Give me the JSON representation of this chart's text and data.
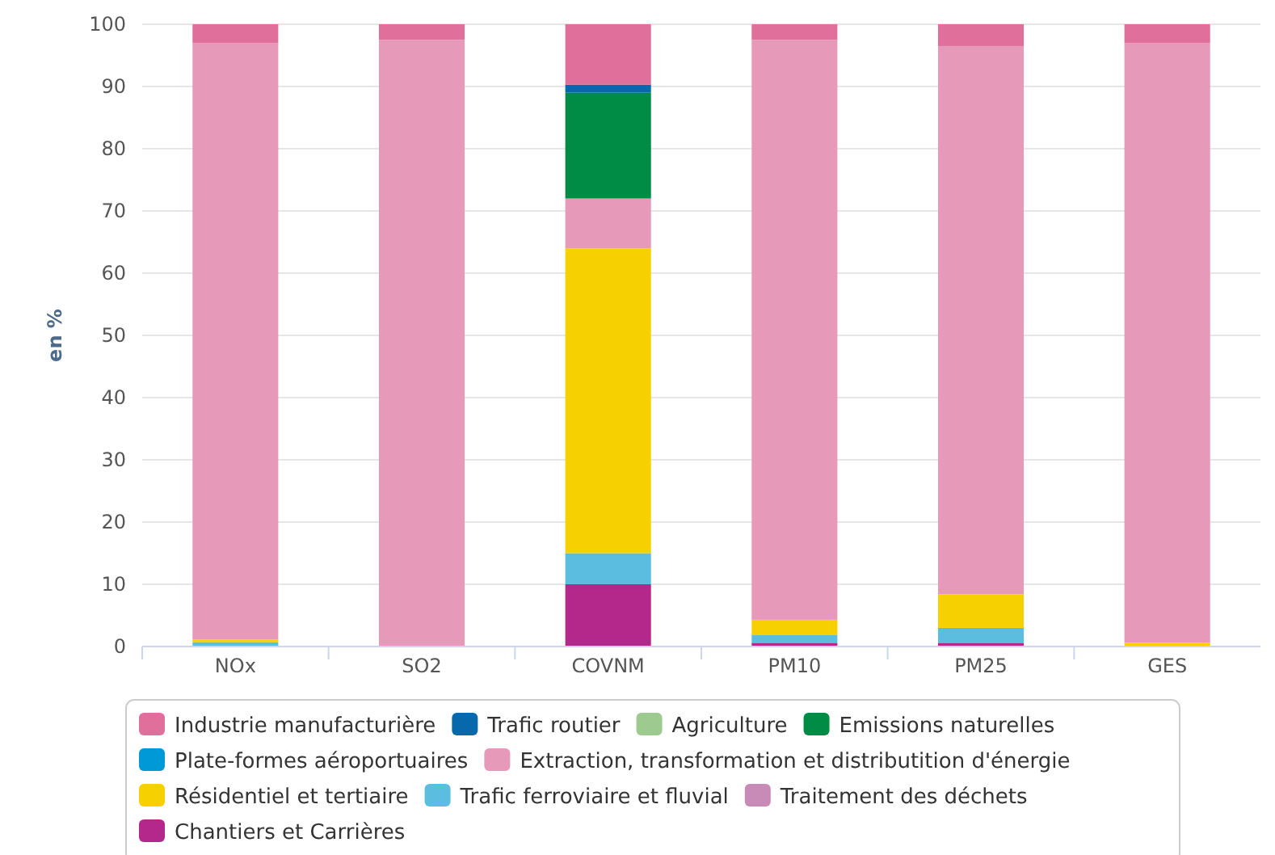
{
  "chart_data": {
    "type": "bar",
    "stacked": true,
    "ylabel": "en %",
    "categories": [
      "NOx",
      "SO2",
      "COVNM",
      "PM10",
      "PM25",
      "GES"
    ],
    "ylim": [
      0,
      100
    ],
    "yticks": [
      0,
      10,
      20,
      30,
      40,
      50,
      60,
      70,
      80,
      90,
      100
    ],
    "grid": "y",
    "legend": "bottom",
    "series": [
      {
        "name": "Chantiers et Carrières",
        "color": "#b5288b",
        "values": [
          0,
          0,
          10,
          0.6,
          0.6,
          0
        ]
      },
      {
        "name": "Traitement des déchets",
        "color": "#c88ab6",
        "values": [
          0,
          0,
          0,
          0,
          0,
          0
        ]
      },
      {
        "name": "Trafic ferroviaire et fluvial",
        "color": "#5bbee0",
        "values": [
          0.7,
          0,
          5,
          1.3,
          2.4,
          0
        ]
      },
      {
        "name": "Résidentiel et tertiaire",
        "color": "#f7d000",
        "values": [
          0.4,
          0,
          49,
          2.4,
          5.4,
          0.6
        ]
      },
      {
        "name": "Extraction, transformation et distributition d'énergie",
        "color": "#e799b9",
        "values": [
          95.9,
          97.5,
          8,
          93.2,
          88.1,
          96.4
        ]
      },
      {
        "name": "Plate-formes aéroportuaires",
        "color": "#0099d8",
        "values": [
          0,
          0,
          0,
          0,
          0,
          0
        ]
      },
      {
        "name": "Emissions naturelles",
        "color": "#008c44",
        "values": [
          0,
          0,
          17,
          0,
          0,
          0
        ]
      },
      {
        "name": "Agriculture",
        "color": "#9dcb8f",
        "values": [
          0,
          0,
          0,
          0,
          0,
          0
        ]
      },
      {
        "name": "Trafic routier",
        "color": "#0868ac",
        "values": [
          0,
          0,
          1.3,
          0,
          0,
          0
        ]
      },
      {
        "name": "Industrie manufacturière",
        "color": "#e0709b",
        "values": [
          3,
          2.5,
          9.7,
          2.5,
          3.5,
          3
        ]
      }
    ]
  }
}
